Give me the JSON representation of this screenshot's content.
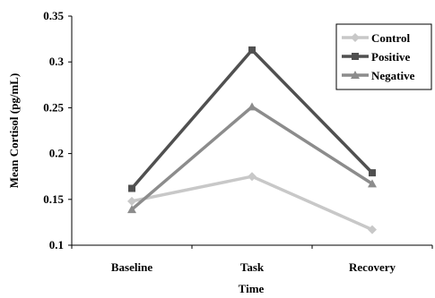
{
  "chart_data": {
    "type": "line",
    "categories": [
      "Baseline",
      "Task",
      "Recovery"
    ],
    "series": [
      {
        "name": "Control",
        "values": [
          0.148,
          0.175,
          0.117
        ],
        "color": "#c8c8c8",
        "marker": "diamond"
      },
      {
        "name": "Positive",
        "values": [
          0.162,
          0.313,
          0.179
        ],
        "color": "#505050",
        "marker": "square"
      },
      {
        "name": "Negative",
        "values": [
          0.139,
          0.251,
          0.167
        ],
        "color": "#8c8c8c",
        "marker": "triangle"
      }
    ],
    "title": "",
    "xlabel": "Time",
    "ylabel": "Mean Cortisol (pg/mL)",
    "ylim": [
      0.1,
      0.35
    ],
    "yticks": [
      0.1,
      0.15,
      0.2,
      0.25,
      0.3,
      0.35
    ],
    "ytick_labels": [
      "0.1",
      "0.15",
      "0.2",
      "0.25",
      "0.3",
      "0.35"
    ],
    "grid": false,
    "legend_position": "top-right"
  }
}
